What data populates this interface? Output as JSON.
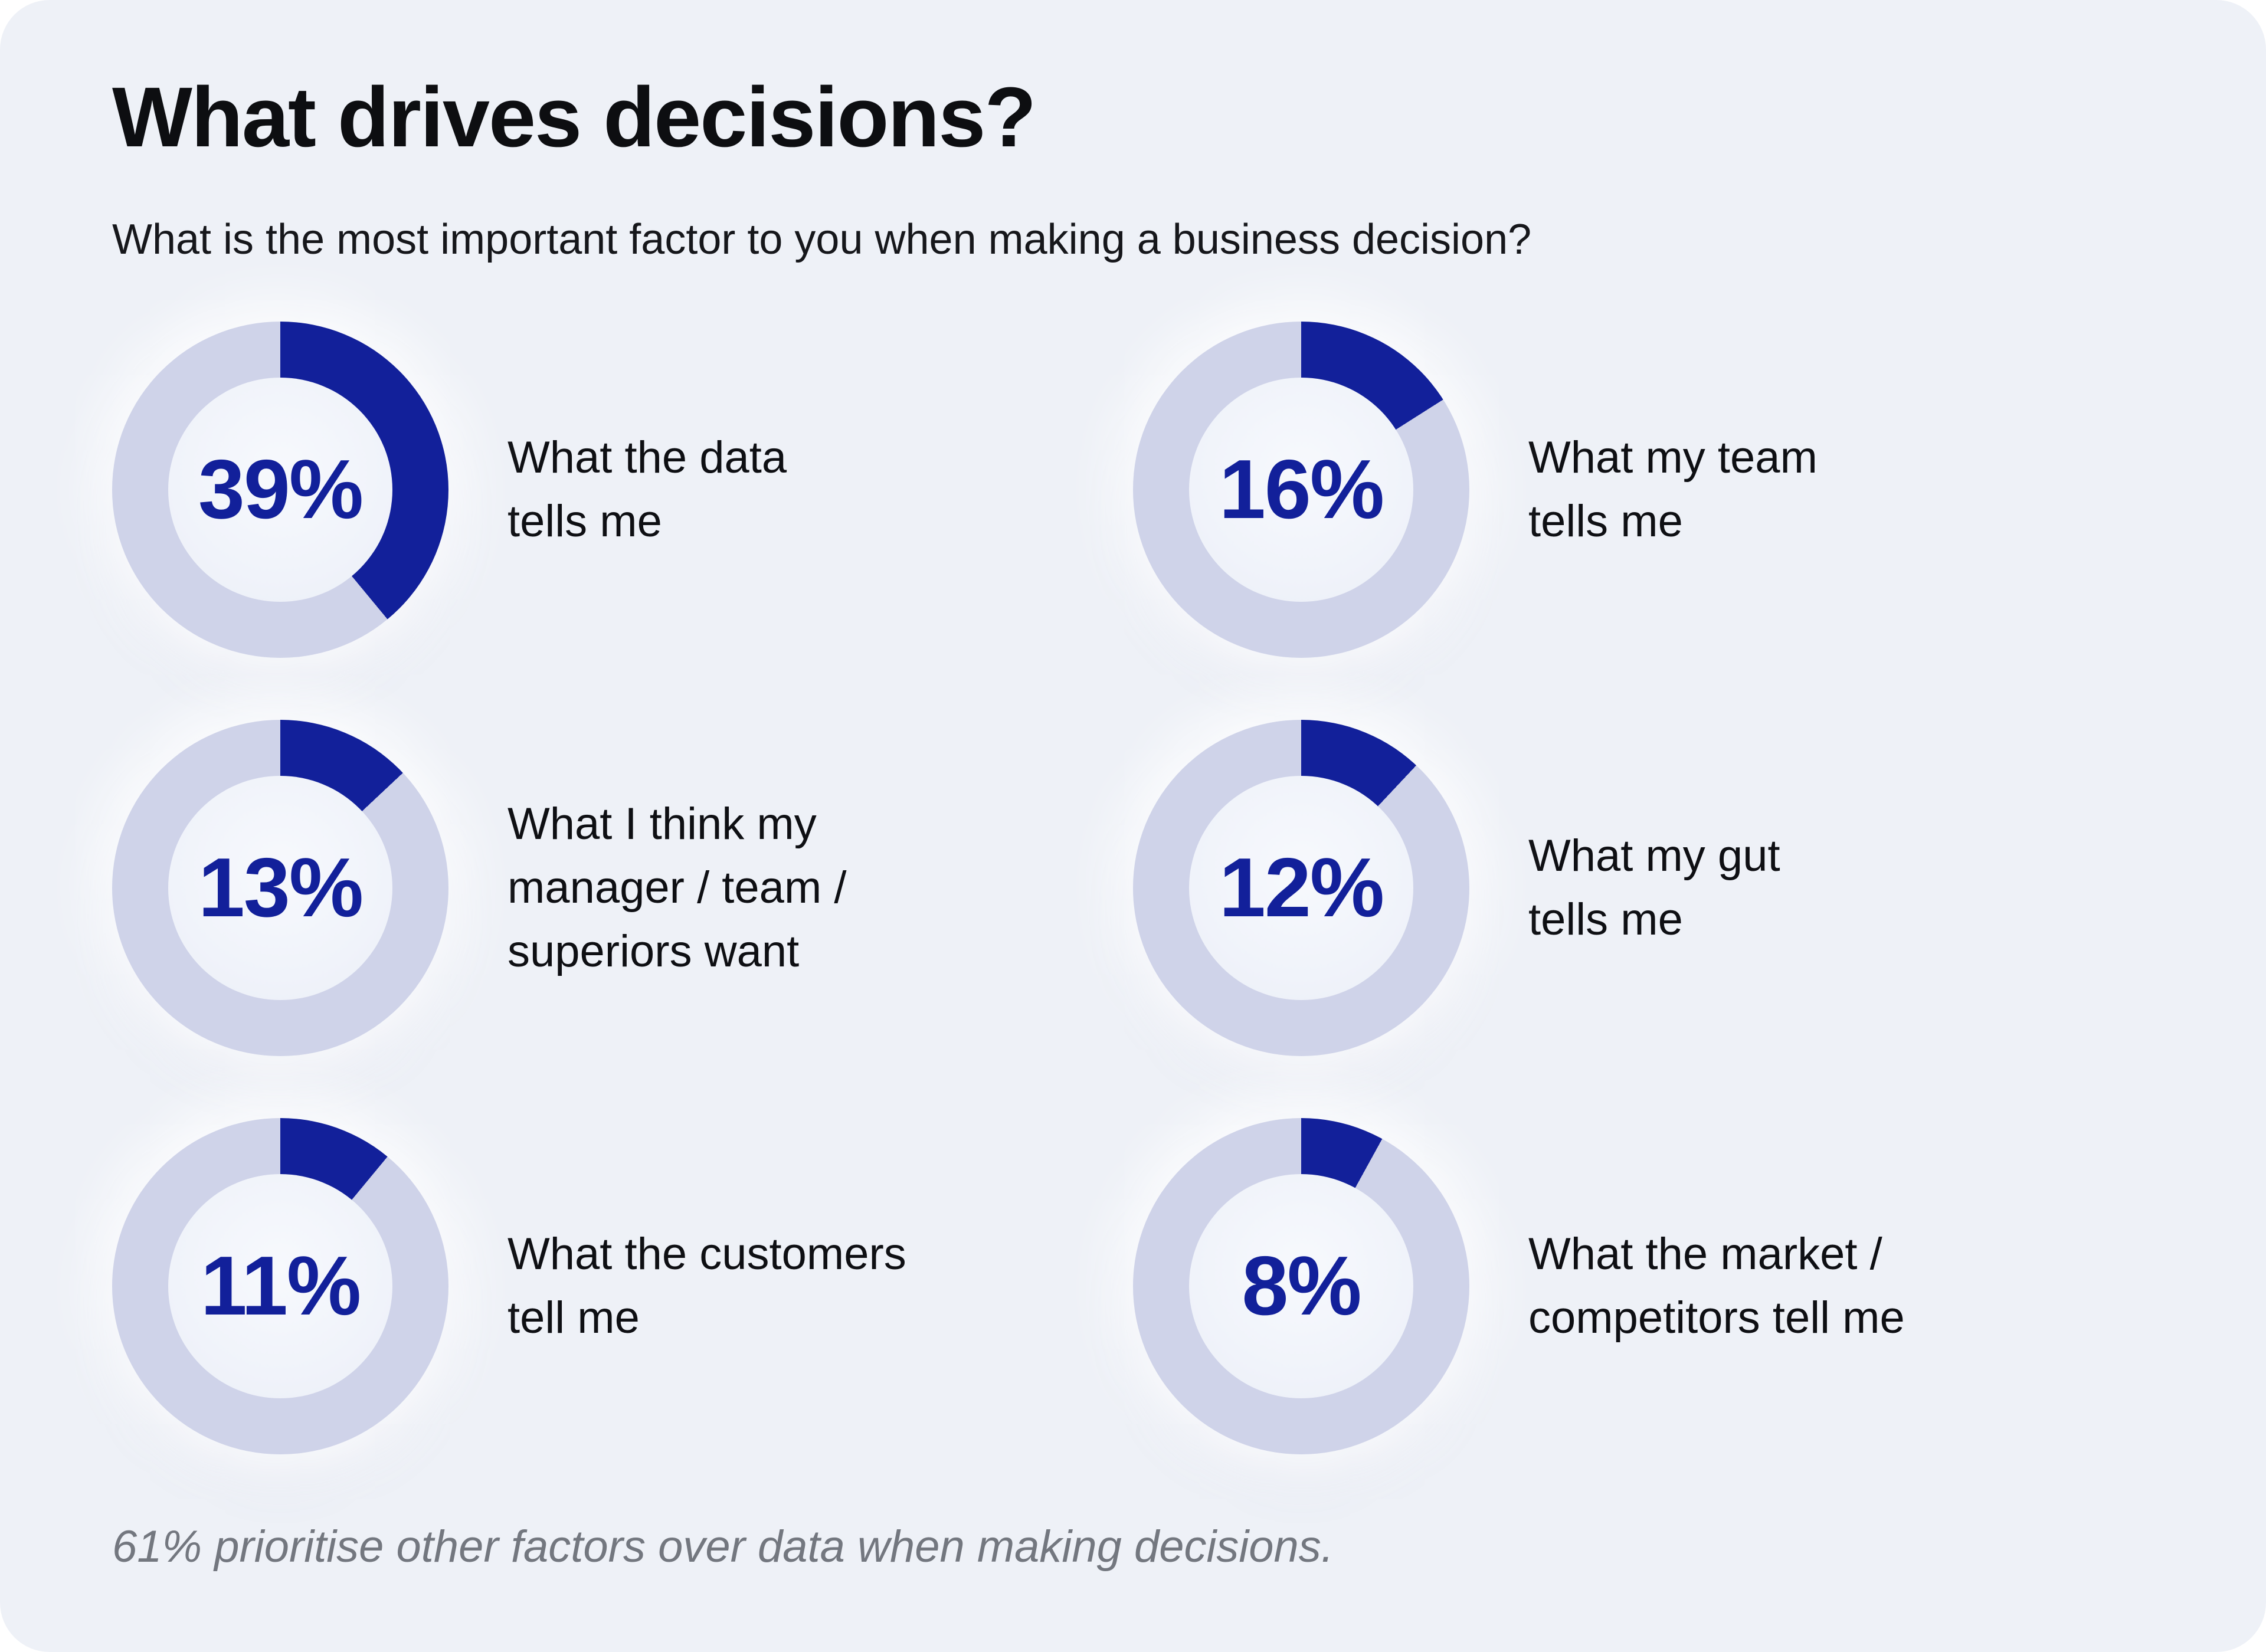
{
  "page": {
    "title": "What drives decisions?",
    "subtitle": "What is the most important factor to you when making a business decision?",
    "footnote": "61% prioritise other factors over data when making decisions."
  },
  "colors": {
    "accent_blue": "#12209a",
    "track_lavender": "#cfd3e9",
    "card_background": "#eef1f7",
    "hole_background": "#f2f4fa",
    "text_dark": "#0e0f13",
    "footnote_gray": "#73777f"
  },
  "donuts": [
    {
      "value": 39,
      "label": "39%",
      "caption": "What the data\ntells me"
    },
    {
      "value": 16,
      "label": "16%",
      "caption": "What my team\ntells me"
    },
    {
      "value": 13,
      "label": "13%",
      "caption": "What I think my\nmanager / team /\nsuperiors want"
    },
    {
      "value": 12,
      "label": "12%",
      "caption": "What my gut\ntells me"
    },
    {
      "value": 11,
      "label": "11%",
      "caption": "What the customers\ntell me"
    },
    {
      "value": 8,
      "label": "8%",
      "caption": "What the market /\ncompetitors tell me"
    }
  ],
  "chart_data": {
    "type": "pie",
    "variant": "six individual donut gauges, filled clockwise from 12 o'clock",
    "title": "What drives decisions?",
    "subtitle": "What is the most important factor to you when making a business decision?",
    "categories": [
      "What the data tells me",
      "What my team tells me",
      "What I think my manager / team / superiors want",
      "What my gut tells me",
      "What the customers tell me",
      "What the market / competitors tell me"
    ],
    "values": [
      39,
      16,
      13,
      12,
      11,
      8
    ],
    "unit": "%",
    "legend": "none",
    "annotation": "61% prioritise other factors over data when making decisions."
  }
}
